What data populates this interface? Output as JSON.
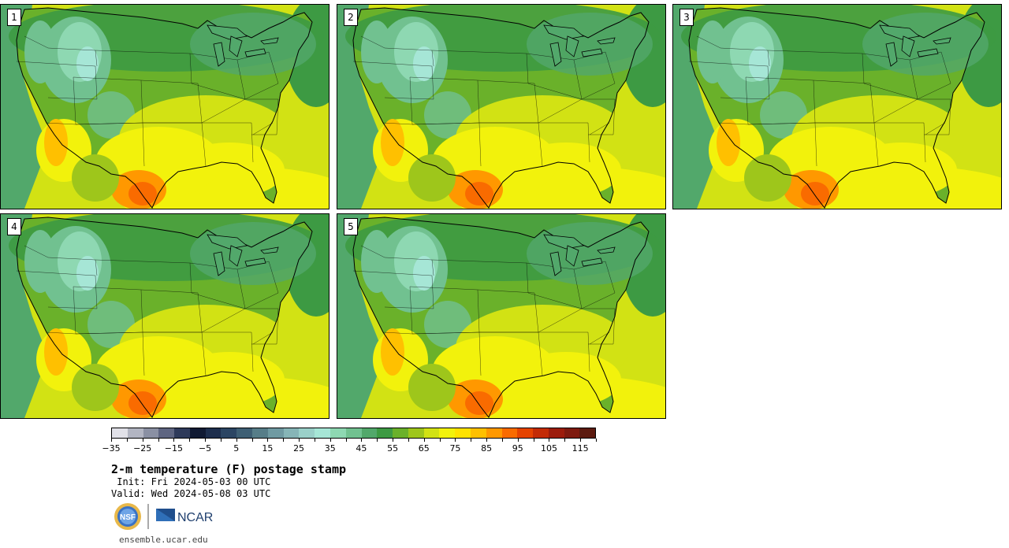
{
  "product": {
    "title": "2-m temperature (F) postage stamp",
    "init_label": " Init:",
    "init_value": "Fri 2024-05-03 00 UTC",
    "valid_label": "Valid:",
    "valid_value": "Wed 2024-05-08 03 UTC",
    "website": "ensemble.ucar.edu"
  },
  "logos": {
    "nsf_text": "NSF",
    "ncar_text": "NCAR"
  },
  "members": [
    {
      "label": "1",
      "map_icon": "conus-temperature-map"
    },
    {
      "label": "2",
      "map_icon": "conus-temperature-map"
    },
    {
      "label": "3",
      "map_icon": "conus-temperature-map"
    },
    {
      "label": "4",
      "map_icon": "conus-temperature-map"
    },
    {
      "label": "5",
      "map_icon": "conus-temperature-map"
    }
  ],
  "colorbar": {
    "tick_labels": [
      "−35",
      "−25",
      "−15",
      "−5",
      "5",
      "15",
      "25",
      "35",
      "45",
      "55",
      "65",
      "75",
      "85",
      "95",
      "105",
      "115"
    ],
    "colors": [
      "#e1e1e8",
      "#b2b5c2",
      "#8a90a3",
      "#5e6581",
      "#2e3a5a",
      "#101a33",
      "#1d2e4d",
      "#2b4563",
      "#3e5f74",
      "#567d88",
      "#6f9aa2",
      "#86b5b7",
      "#9ad0c9",
      "#a6e6d6",
      "#8ed8b2",
      "#71c190",
      "#52a86b",
      "#3d9a43",
      "#6ab12a",
      "#9ec61b",
      "#d2e214",
      "#f2f20c",
      "#ffe200",
      "#ffc000",
      "#ff9800",
      "#f96b00",
      "#e54300",
      "#c32b06",
      "#9c1c0c",
      "#7e1a0f",
      "#5c1a0f"
    ]
  }
}
